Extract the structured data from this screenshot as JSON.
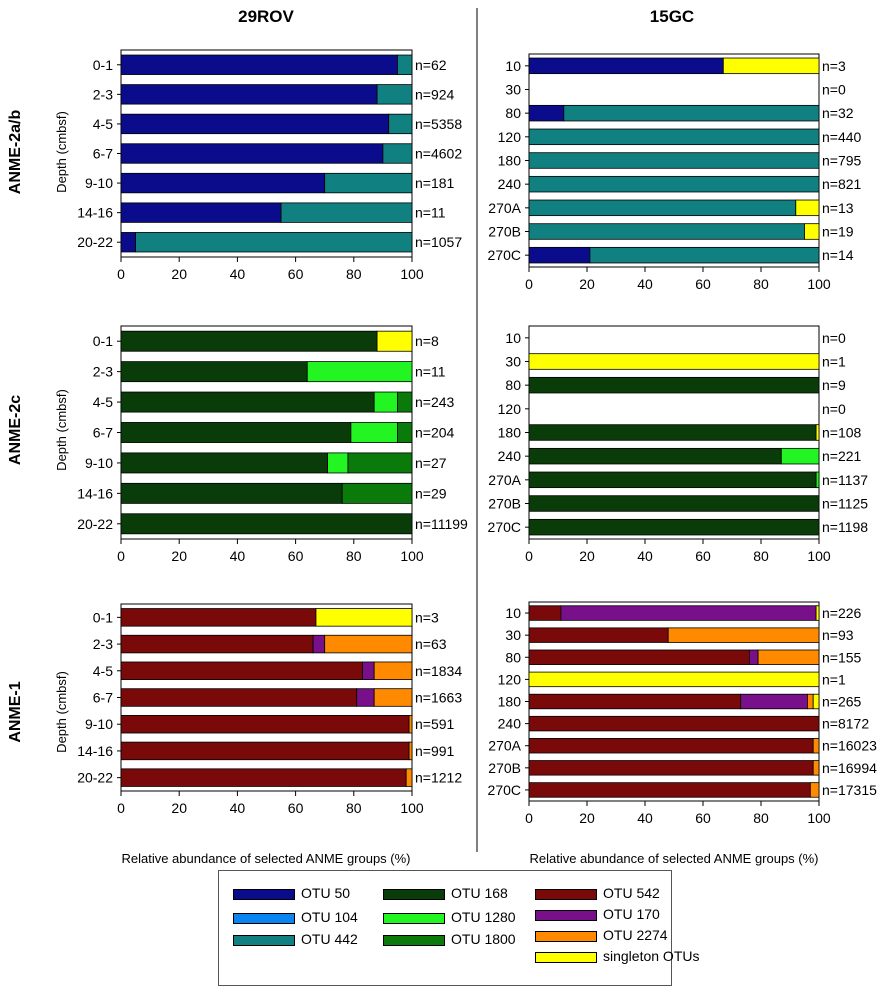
{
  "column_titles": [
    "29ROV",
    "15GC"
  ],
  "row_titles": [
    "ANME-2a/b",
    "ANME-2c",
    "ANME-1"
  ],
  "ylabel": "Depth (cmbsf)",
  "xlabel": "Relative abundance of selected ANME groups (%)",
  "xticks": [
    "0",
    "20",
    "40",
    "60",
    "80",
    "100"
  ],
  "legend": [
    {
      "label": "OTU 50",
      "color": "#0a0c8c"
    },
    {
      "label": "OTU 104",
      "color": "#0a84f0"
    },
    {
      "label": "OTU 442",
      "color": "#108080"
    },
    {
      "label": "OTU 168",
      "color": "#0a3c0a"
    },
    {
      "label": "OTU 1280",
      "color": "#22f522"
    },
    {
      "label": "OTU 1800",
      "color": "#0a7a0a"
    },
    {
      "label": "OTU 542",
      "color": "#7a0a0a"
    },
    {
      "label": "OTU 170",
      "color": "#78108a"
    },
    {
      "label": "OTU 2274",
      "color": "#ff8a00"
    },
    {
      "label": "singleton OTUs",
      "color": "#ffff00"
    }
  ],
  "chart_data": [
    {
      "type": "bar",
      "stacked": true,
      "orientation": "horizontal",
      "site": "29ROV",
      "group": "ANME-2a/b",
      "xlim": [
        0,
        100
      ],
      "categories": [
        "0-1",
        "2-3",
        "4-5",
        "6-7",
        "9-10",
        "14-16",
        "20-22"
      ],
      "n_labels": [
        "n=62",
        "n=924",
        "n=5358",
        "n=4602",
        "n=181",
        "n=11",
        "n=1057"
      ],
      "series": [
        {
          "name": "OTU 50",
          "values": [
            95,
            88,
            92,
            90,
            70,
            55,
            5
          ]
        },
        {
          "name": "OTU 442",
          "values": [
            5,
            12,
            8,
            10,
            30,
            45,
            95
          ]
        }
      ]
    },
    {
      "type": "bar",
      "stacked": true,
      "orientation": "horizontal",
      "site": "15GC",
      "group": "ANME-2a/b",
      "xlim": [
        0,
        100
      ],
      "categories": [
        "10",
        "30",
        "80",
        "120",
        "180",
        "240",
        "270A",
        "270B",
        "270C"
      ],
      "n_labels": [
        "n=3",
        "n=0",
        "n=32",
        "n=440",
        "n=795",
        "n=821",
        "n=13",
        "n=19",
        "n=14"
      ],
      "series": [
        {
          "name": "OTU 50",
          "values": [
            67,
            0,
            12,
            0,
            0,
            0,
            0,
            0,
            21
          ]
        },
        {
          "name": "OTU 442",
          "values": [
            0,
            0,
            88,
            100,
            100,
            100,
            92,
            95,
            79
          ]
        },
        {
          "name": "singleton OTUs",
          "values": [
            33,
            0,
            0,
            0,
            0,
            0,
            8,
            5,
            0
          ]
        }
      ]
    },
    {
      "type": "bar",
      "stacked": true,
      "orientation": "horizontal",
      "site": "29ROV",
      "group": "ANME-2c",
      "xlim": [
        0,
        100
      ],
      "categories": [
        "0-1",
        "2-3",
        "4-5",
        "6-7",
        "9-10",
        "14-16",
        "20-22"
      ],
      "n_labels": [
        "n=8",
        "n=11",
        "n=243",
        "n=204",
        "n=27",
        "n=29",
        "n=11199"
      ],
      "series": [
        {
          "name": "OTU 168",
          "values": [
            88,
            64,
            87,
            79,
            71,
            76,
            100
          ]
        },
        {
          "name": "OTU 1280",
          "values": [
            0,
            36,
            8,
            16,
            7,
            0,
            0
          ]
        },
        {
          "name": "OTU 1800",
          "values": [
            0,
            0,
            5,
            5,
            22,
            24,
            0
          ]
        },
        {
          "name": "singleton OTUs",
          "values": [
            12,
            0,
            0,
            0,
            0,
            0,
            0
          ]
        }
      ]
    },
    {
      "type": "bar",
      "stacked": true,
      "orientation": "horizontal",
      "site": "15GC",
      "group": "ANME-2c",
      "xlim": [
        0,
        100
      ],
      "categories": [
        "10",
        "30",
        "80",
        "120",
        "180",
        "240",
        "270A",
        "270B",
        "270C"
      ],
      "n_labels": [
        "n=0",
        "n=1",
        "n=9",
        "n=0",
        "n=108",
        "n=221",
        "n=1137",
        "n=1125",
        "n=1198"
      ],
      "series": [
        {
          "name": "OTU 168",
          "values": [
            0,
            0,
            100,
            0,
            99,
            87,
            99,
            100,
            100
          ]
        },
        {
          "name": "OTU 1280",
          "values": [
            0,
            0,
            0,
            0,
            0,
            13,
            1,
            0,
            0
          ]
        },
        {
          "name": "singleton OTUs",
          "values": [
            0,
            100,
            0,
            0,
            1,
            0,
            0,
            0,
            0
          ]
        }
      ]
    },
    {
      "type": "bar",
      "stacked": true,
      "orientation": "horizontal",
      "site": "29ROV",
      "group": "ANME-1",
      "xlim": [
        0,
        100
      ],
      "categories": [
        "0-1",
        "2-3",
        "4-5",
        "6-7",
        "9-10",
        "14-16",
        "20-22"
      ],
      "n_labels": [
        "n=3",
        "n=63",
        "n=1834",
        "n=1663",
        "n=591",
        "n=991",
        "n=1212"
      ],
      "series": [
        {
          "name": "OTU 542",
          "values": [
            67,
            66,
            83,
            81,
            99,
            99,
            98
          ]
        },
        {
          "name": "OTU 170",
          "values": [
            0,
            4,
            4,
            6,
            0,
            0,
            0
          ]
        },
        {
          "name": "OTU 2274",
          "values": [
            0,
            30,
            13,
            13,
            1,
            1,
            2
          ]
        },
        {
          "name": "singleton OTUs",
          "values": [
            33,
            0,
            0,
            0,
            0,
            0,
            0
          ]
        }
      ]
    },
    {
      "type": "bar",
      "stacked": true,
      "orientation": "horizontal",
      "site": "15GC",
      "group": "ANME-1",
      "xlim": [
        0,
        100
      ],
      "categories": [
        "10",
        "30",
        "80",
        "120",
        "180",
        "240",
        "270A",
        "270B",
        "270C"
      ],
      "n_labels": [
        "n=226",
        "n=93",
        "n=155",
        "n=1",
        "n=265",
        "n=8172",
        "n=16023",
        "n=16994",
        "n=17315"
      ],
      "series": [
        {
          "name": "OTU 542",
          "values": [
            11,
            48,
            76,
            0,
            73,
            100,
            98,
            98,
            97
          ]
        },
        {
          "name": "OTU 170",
          "values": [
            88,
            0,
            3,
            0,
            23,
            0,
            0,
            0,
            0
          ]
        },
        {
          "name": "OTU 2274",
          "values": [
            0,
            52,
            21,
            0,
            2,
            0,
            2,
            2,
            3
          ]
        },
        {
          "name": "singleton OTUs",
          "values": [
            1,
            0,
            0,
            100,
            2,
            0,
            0,
            0,
            0
          ]
        }
      ]
    }
  ]
}
